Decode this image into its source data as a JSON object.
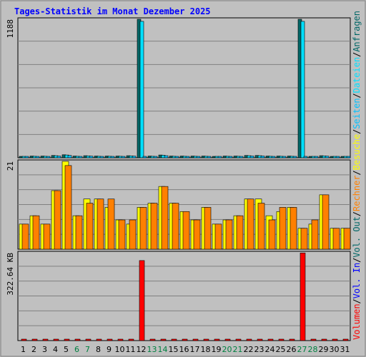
{
  "title": "Tages-Statistik im Monat Dezember 2025",
  "colors": {
    "background": "#c0c0c0",
    "plot_background": "#c0c0c0",
    "grid": "#808080",
    "title": "#0000ff",
    "hits": "#006666",
    "files": "#00e0ff",
    "pages": "#00c0ff",
    "visits": "#ffff00",
    "sites": "#ff8000",
    "volume": "#ff0000",
    "vol_in": "#0000ff",
    "vol_out": "#006666",
    "weekend_label": "#008040",
    "weekday_label": "#000000",
    "separator": "#000000"
  },
  "chart_data": [
    {
      "type": "bar",
      "panel": "requests",
      "ymax_label": "1188",
      "ylim": [
        0,
        1188
      ],
      "grid": true,
      "categories": [
        "1",
        "2",
        "3",
        "4",
        "5",
        "6",
        "7",
        "8",
        "9",
        "10",
        "11",
        "12",
        "13",
        "14",
        "15",
        "16",
        "17",
        "18",
        "19",
        "20",
        "21",
        "22",
        "23",
        "24",
        "25",
        "26",
        "27",
        "28",
        "29",
        "30",
        "31"
      ],
      "series": [
        {
          "name": "Anfragen",
          "color_key": "hits",
          "values": [
            8,
            15,
            15,
            20,
            26,
            15,
            18,
            15,
            15,
            15,
            18,
            1188,
            15,
            24,
            15,
            15,
            15,
            15,
            12,
            15,
            15,
            20,
            20,
            15,
            15,
            15,
            1188,
            12,
            18,
            8,
            8
          ]
        },
        {
          "name": "Dateien",
          "color_key": "files",
          "values": [
            7,
            13,
            13,
            18,
            24,
            13,
            16,
            13,
            13,
            13,
            16,
            1170,
            13,
            22,
            13,
            13,
            13,
            13,
            10,
            13,
            13,
            18,
            18,
            13,
            13,
            13,
            1170,
            10,
            16,
            7,
            7
          ]
        },
        {
          "name": "Seiten",
          "color_key": "pages",
          "values": [
            6,
            12,
            12,
            15,
            20,
            12,
            14,
            12,
            12,
            12,
            14,
            12,
            12,
            18,
            12,
            12,
            12,
            12,
            9,
            12,
            12,
            15,
            15,
            12,
            12,
            12,
            12,
            9,
            14,
            6,
            6
          ]
        }
      ],
      "legend": [
        "Anfragen",
        "/",
        "Dateien",
        "/",
        "Seiten"
      ]
    },
    {
      "type": "bar",
      "panel": "visits",
      "ymax_label": "21",
      "ylim": [
        0,
        21
      ],
      "grid": true,
      "categories": [
        "1",
        "2",
        "3",
        "4",
        "5",
        "6",
        "7",
        "8",
        "9",
        "10",
        "11",
        "12",
        "13",
        "14",
        "15",
        "16",
        "17",
        "18",
        "19",
        "20",
        "21",
        "22",
        "23",
        "24",
        "25",
        "26",
        "27",
        "28",
        "29",
        "30",
        "31"
      ],
      "series": [
        {
          "name": "Besuche",
          "color_key": "visits",
          "values": [
            6,
            8,
            6,
            14,
            21,
            8,
            12,
            12,
            10,
            7,
            6,
            10,
            11,
            15,
            11,
            9,
            7,
            10,
            6,
            7,
            8,
            12,
            12,
            8,
            9,
            10,
            5,
            6,
            13,
            5,
            5
          ]
        },
        {
          "name": "Rechner",
          "color_key": "sites",
          "values": [
            6,
            8,
            6,
            14,
            20,
            8,
            11,
            12,
            12,
            7,
            7,
            10,
            11,
            15,
            11,
            9,
            7,
            10,
            6,
            7,
            8,
            12,
            11,
            7,
            10,
            10,
            5,
            7,
            13,
            5,
            5
          ]
        }
      ],
      "legend": [
        "Besuche",
        "/",
        "Rechner"
      ]
    },
    {
      "type": "bar",
      "panel": "volume",
      "ymax_label": "322.64 KB",
      "ylim": [
        0,
        322.64
      ],
      "unit": "KB",
      "grid": true,
      "categories": [
        "1",
        "2",
        "3",
        "4",
        "5",
        "6",
        "7",
        "8",
        "9",
        "10",
        "11",
        "12",
        "13",
        "14",
        "15",
        "16",
        "17",
        "18",
        "19",
        "20",
        "21",
        "22",
        "23",
        "24",
        "25",
        "26",
        "27",
        "28",
        "29",
        "30",
        "31"
      ],
      "series": [
        {
          "name": "Volumen",
          "color_key": "volume",
          "values": [
            2,
            2,
            2,
            2,
            5,
            2,
            4,
            2,
            2,
            2,
            2,
            294,
            4,
            4,
            2,
            2,
            2,
            4,
            2,
            2,
            2,
            4,
            4,
            2,
            4,
            2,
            322,
            2,
            2,
            2,
            2
          ]
        }
      ],
      "legend": [
        "Volumen",
        "/",
        "Vol. In",
        "/",
        "Vol. Out"
      ]
    }
  ],
  "x_axis": {
    "weekend_days": [
      "6",
      "7",
      "13",
      "14",
      "20",
      "21",
      "27",
      "28"
    ]
  }
}
